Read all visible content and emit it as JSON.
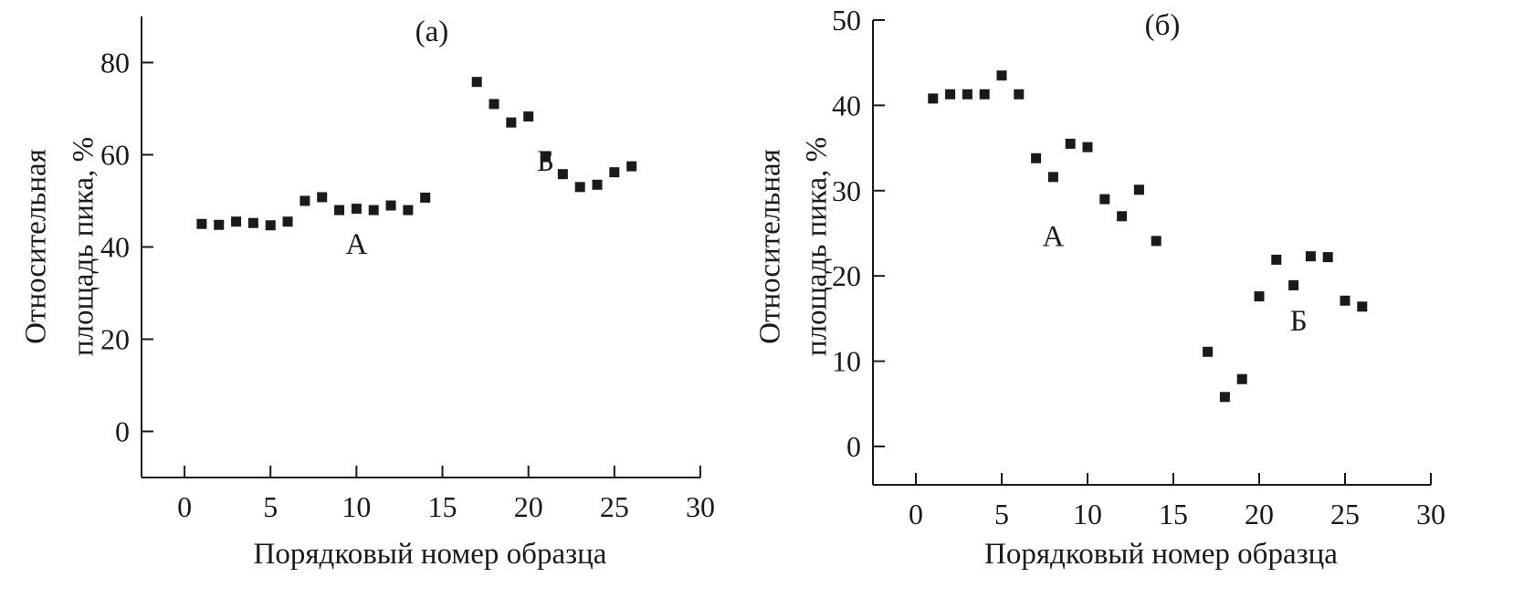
{
  "chart_data": [
    {
      "type": "scatter",
      "title": "(а)",
      "xlabel": "Порядковый номер образца",
      "ylabel": "Относительная площадь пика, %",
      "xlim": [
        -2.5,
        30
      ],
      "ylim": [
        -10,
        90
      ],
      "xticks": [
        0,
        5,
        10,
        15,
        20,
        25,
        30
      ],
      "yticks": [
        0,
        20,
        40,
        60,
        80
      ],
      "marker": "square",
      "color": "#1a1a1a",
      "grid": false,
      "points": [
        {
          "x": 1,
          "y": 45
        },
        {
          "x": 2,
          "y": 44.8
        },
        {
          "x": 3,
          "y": 45.5
        },
        {
          "x": 4,
          "y": 45.2
        },
        {
          "x": 5,
          "y": 44.7
        },
        {
          "x": 6,
          "y": 45.5
        },
        {
          "x": 7,
          "y": 50
        },
        {
          "x": 8,
          "y": 50.8
        },
        {
          "x": 9,
          "y": 48
        },
        {
          "x": 10,
          "y": 48.3
        },
        {
          "x": 11,
          "y": 48
        },
        {
          "x": 12,
          "y": 49
        },
        {
          "x": 13,
          "y": 48
        },
        {
          "x": 14,
          "y": 50.7
        },
        {
          "x": 17,
          "y": 75.8
        },
        {
          "x": 18,
          "y": 71
        },
        {
          "x": 19,
          "y": 67
        },
        {
          "x": 20,
          "y": 68.3
        },
        {
          "x": 21,
          "y": 59.5
        },
        {
          "x": 22,
          "y": 55.8
        },
        {
          "x": 23,
          "y": 53
        },
        {
          "x": 24,
          "y": 53.5
        },
        {
          "x": 25,
          "y": 56.2
        },
        {
          "x": 26,
          "y": 57.5
        }
      ],
      "annotations": [
        {
          "text": "А",
          "x": 10,
          "y": 38.5
        },
        {
          "text": "Б",
          "x": 21,
          "y": 56.5
        }
      ]
    },
    {
      "type": "scatter",
      "title": "(б)",
      "xlabel": "Порядковый номер образца",
      "ylabel": "Относительная площадь пика, %",
      "xlim": [
        -2.5,
        30
      ],
      "ylim": [
        -4.5,
        50
      ],
      "xticks": [
        0,
        5,
        10,
        15,
        20,
        25,
        30
      ],
      "yticks": [
        0,
        10,
        20,
        30,
        40,
        50
      ],
      "marker": "square",
      "color": "#1a1a1a",
      "grid": false,
      "points": [
        {
          "x": 1,
          "y": 40.8
        },
        {
          "x": 2,
          "y": 41.3
        },
        {
          "x": 3,
          "y": 41.3
        },
        {
          "x": 4,
          "y": 41.3
        },
        {
          "x": 5,
          "y": 43.5
        },
        {
          "x": 6,
          "y": 41.3
        },
        {
          "x": 7,
          "y": 33.8
        },
        {
          "x": 8,
          "y": 31.6
        },
        {
          "x": 9,
          "y": 35.5
        },
        {
          "x": 10,
          "y": 35.1
        },
        {
          "x": 11,
          "y": 29
        },
        {
          "x": 12,
          "y": 27
        },
        {
          "x": 13,
          "y": 30.1
        },
        {
          "x": 14,
          "y": 24.1
        },
        {
          "x": 17,
          "y": 11.1
        },
        {
          "x": 18,
          "y": 5.8
        },
        {
          "x": 19,
          "y": 7.9
        },
        {
          "x": 20,
          "y": 17.6
        },
        {
          "x": 21,
          "y": 21.9
        },
        {
          "x": 22,
          "y": 18.9
        },
        {
          "x": 23,
          "y": 22.3
        },
        {
          "x": 24,
          "y": 22.2
        },
        {
          "x": 25,
          "y": 17.1
        },
        {
          "x": 26,
          "y": 16.4
        }
      ],
      "annotations": [
        {
          "text": "А",
          "x": 8,
          "y": 23.5
        },
        {
          "text": "Б",
          "x": 22.3,
          "y": 13.6
        }
      ]
    }
  ]
}
